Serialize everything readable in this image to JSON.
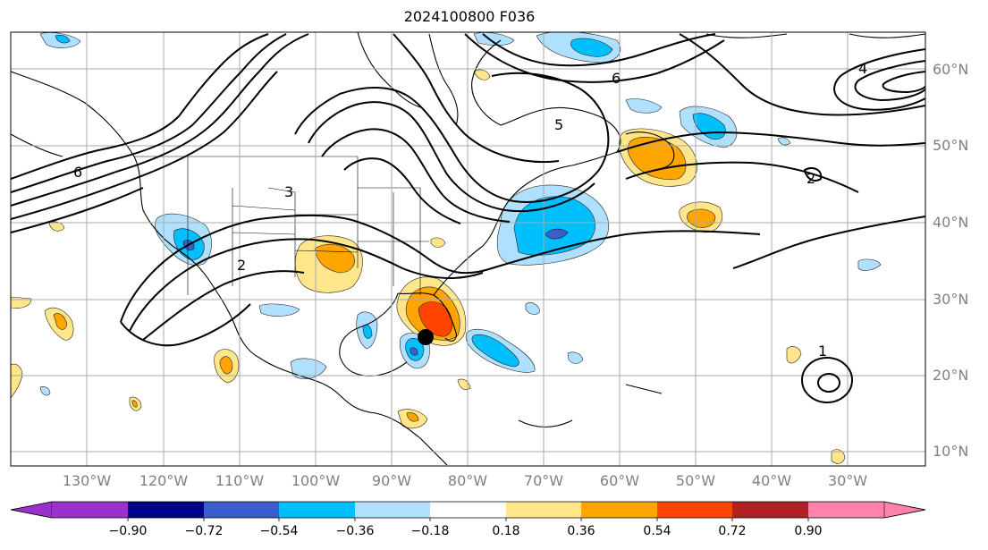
{
  "title": "2024100800 F036",
  "map": {
    "lat_labels": [
      "60°N",
      "50°N",
      "40°N",
      "30°N",
      "20°N",
      "10°N"
    ],
    "lon_labels": [
      "130°W",
      "120°W",
      "110°W",
      "100°W",
      "90°W",
      "80°W",
      "70°W",
      "60°W",
      "50°W",
      "40°W",
      "30°W"
    ],
    "contour_labels": [
      "6",
      "5",
      "4",
      "3",
      "2",
      "1"
    ],
    "marker": "storm-center-marker",
    "colorbar": {
      "ticks": [
        "−0.90",
        "−0.72",
        "−0.54",
        "−0.36",
        "−0.18",
        "0.18",
        "0.36",
        "0.54",
        "0.72",
        "0.90"
      ],
      "colors": [
        "#9932cc",
        "#00008b",
        "#3a5fcd",
        "#00bfff",
        "#b0e0ff",
        "#ffffff",
        "#ffe68a",
        "#ffa500",
        "#ff4500",
        "#b22222",
        "#ff82ab"
      ]
    }
  }
}
